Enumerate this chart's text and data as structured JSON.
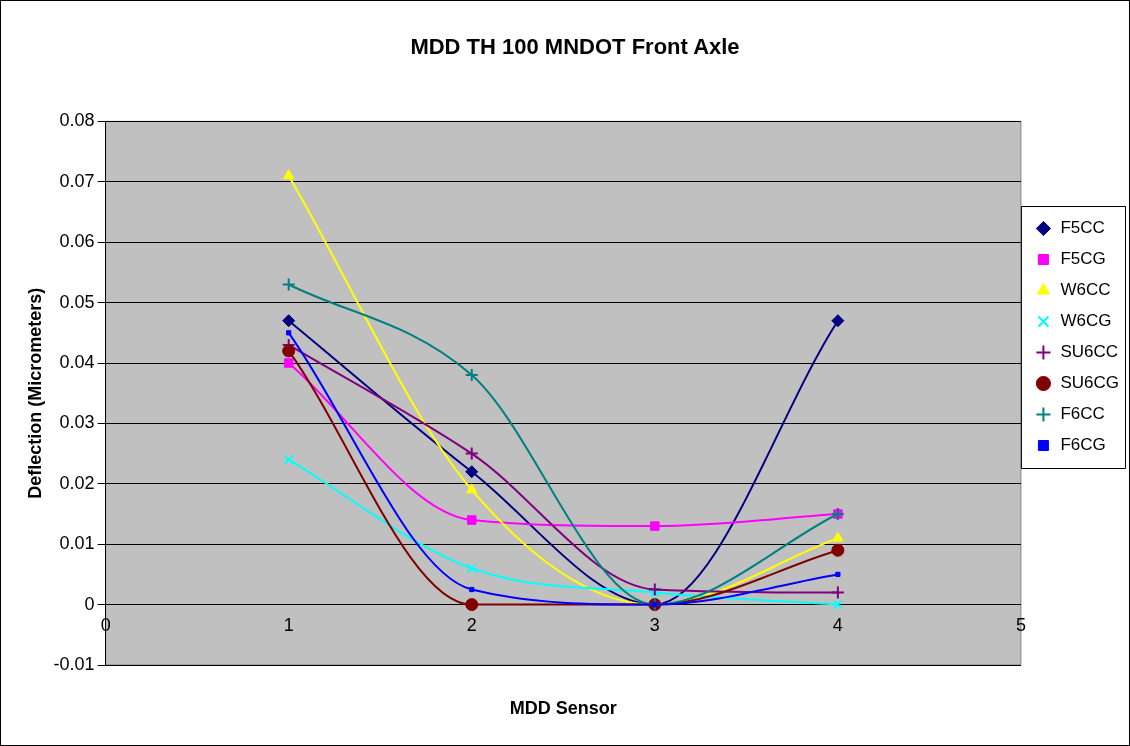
{
  "chart_data": {
    "type": "line",
    "title": "MDD TH 100 MNDOT Front Axle",
    "xlabel": "MDD Sensor",
    "ylabel": "Deflection (Micrometers)",
    "x": [
      1,
      2,
      3,
      4
    ],
    "xlim": [
      0,
      5
    ],
    "xticks": [
      0,
      1,
      2,
      3,
      4,
      5
    ],
    "ylim": [
      -0.01,
      0.08
    ],
    "yticks": [
      -0.01,
      0,
      0.01,
      0.02,
      0.03,
      0.04,
      0.05,
      0.06,
      0.07,
      0.08
    ],
    "grid": "y",
    "legend": "right",
    "series": [
      {
        "name": "F5CC",
        "color": "#000080",
        "marker": "diamond",
        "values": [
          0.047,
          0.022,
          0,
          0.047
        ]
      },
      {
        "name": "F5CG",
        "color": "#ff00ff",
        "marker": "square",
        "values": [
          0.04,
          0.014,
          0.013,
          0.015
        ]
      },
      {
        "name": "W6CC",
        "color": "#ffff00",
        "marker": "triangle",
        "values": [
          0.071,
          0.019,
          0,
          0.011
        ]
      },
      {
        "name": "W6CG",
        "color": "#00ffff",
        "marker": "x",
        "values": [
          0.024,
          0.006,
          0.002,
          0
        ]
      },
      {
        "name": "SU6CC",
        "color": "#800080",
        "marker": "cross",
        "values": [
          0.043,
          0.025,
          0.0025,
          0.002
        ]
      },
      {
        "name": "SU6CG",
        "color": "#800000",
        "marker": "circle",
        "values": [
          0.042,
          0,
          0,
          0.009
        ]
      },
      {
        "name": "F6CC",
        "color": "#008080",
        "marker": "cross",
        "values": [
          0.053,
          0.038,
          0,
          0.015
        ]
      },
      {
        "name": "F6CG",
        "color": "#0000ff",
        "marker": "square",
        "values": [
          0.045,
          0.0025,
          0,
          0.005
        ]
      }
    ]
  }
}
